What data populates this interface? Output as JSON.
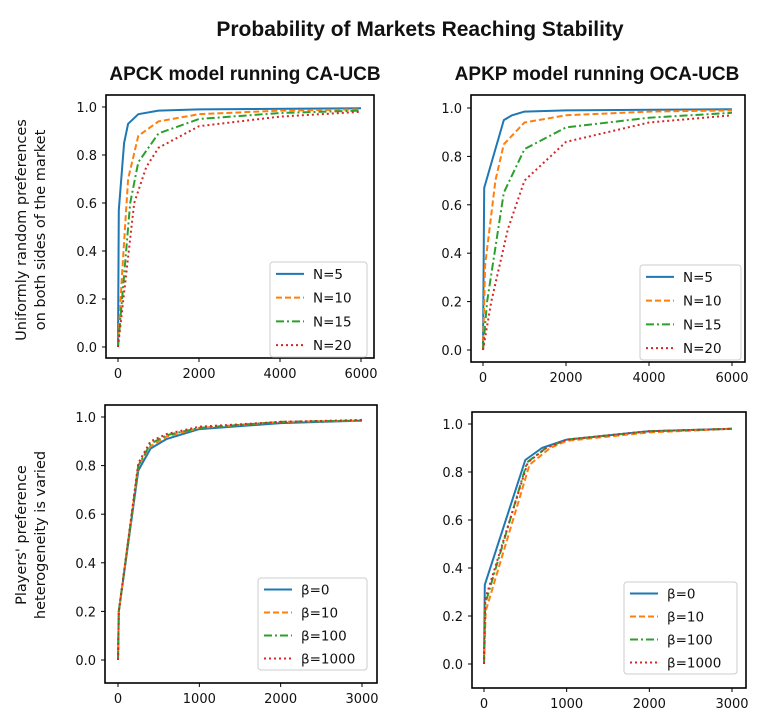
{
  "title": "Probability of Markets Reaching Stability",
  "colors": {
    "s0": "#1f77b4",
    "s1": "#ff7f0e",
    "s2": "#2ca02c",
    "s3": "#d62728"
  },
  "chart_data": [
    {
      "type": "line",
      "title": "APCK model running CA-UCB",
      "ylabel": [
        "Uniformly random preferences",
        "on both sides of the market"
      ],
      "xlim": [
        0,
        6000
      ],
      "ylim": [
        0,
        1
      ],
      "xticks": [
        "0",
        "2000",
        "4000",
        "6000"
      ],
      "yticks": [
        "0.0",
        "0.2",
        "0.4",
        "0.6",
        "0.8",
        "1.0"
      ],
      "legend": "lower-right",
      "grid": false,
      "series": [
        {
          "name": "N=5",
          "style": "solid",
          "x": [
            0,
            20,
            150,
            250,
            500,
            1000,
            2000,
            6000
          ],
          "y": [
            0,
            0.57,
            0.85,
            0.93,
            0.97,
            0.985,
            0.99,
            0.995
          ]
        },
        {
          "name": "N=10",
          "style": "dashed",
          "x": [
            0,
            100,
            250,
            500,
            1000,
            2000,
            4000,
            6000
          ],
          "y": [
            0,
            0.3,
            0.7,
            0.88,
            0.94,
            0.97,
            0.985,
            0.99
          ]
        },
        {
          "name": "N=15",
          "style": "dashdot",
          "x": [
            0,
            150,
            300,
            500,
            1000,
            2000,
            4000,
            6000
          ],
          "y": [
            0,
            0.3,
            0.6,
            0.77,
            0.89,
            0.95,
            0.975,
            0.985
          ]
        },
        {
          "name": "N=20",
          "style": "dotted",
          "x": [
            0,
            200,
            400,
            700,
            1000,
            2000,
            4000,
            6000
          ],
          "y": [
            0,
            0.3,
            0.6,
            0.75,
            0.83,
            0.92,
            0.96,
            0.98
          ]
        }
      ]
    },
    {
      "type": "line",
      "title": "APKP model running OCA-UCB",
      "ylabel": [],
      "xlim": [
        0,
        6000
      ],
      "ylim": [
        0,
        1
      ],
      "xticks": [
        "0",
        "2000",
        "4000",
        "6000"
      ],
      "yticks": [
        "0.0",
        "0.2",
        "0.4",
        "0.6",
        "0.8",
        "1.0"
      ],
      "legend": "lower-right",
      "grid": false,
      "series": [
        {
          "name": "N=5",
          "style": "solid",
          "x": [
            0,
            30,
            500,
            700,
            1000,
            2000,
            6000
          ],
          "y": [
            0,
            0.67,
            0.95,
            0.97,
            0.985,
            0.99,
            0.995
          ]
        },
        {
          "name": "N=10",
          "style": "dashed",
          "x": [
            0,
            50,
            300,
            500,
            1000,
            2000,
            4000,
            6000
          ],
          "y": [
            0,
            0.35,
            0.7,
            0.85,
            0.94,
            0.97,
            0.985,
            0.99
          ]
        },
        {
          "name": "N=15",
          "style": "dashdot",
          "x": [
            0,
            100,
            500,
            1000,
            2000,
            4000,
            6000
          ],
          "y": [
            0,
            0.2,
            0.65,
            0.83,
            0.92,
            0.96,
            0.98
          ]
        },
        {
          "name": "N=20",
          "style": "dotted",
          "x": [
            0,
            200,
            600,
            1000,
            2000,
            4000,
            6000
          ],
          "y": [
            0,
            0.2,
            0.5,
            0.7,
            0.86,
            0.94,
            0.97
          ]
        }
      ]
    },
    {
      "type": "line",
      "title": "",
      "ylabel": [
        "Players' preference",
        "heterogeneity is varied"
      ],
      "xlim": [
        0,
        3000
      ],
      "ylim": [
        0,
        1
      ],
      "xticks": [
        "0",
        "1000",
        "2000",
        "3000"
      ],
      "yticks": [
        "0.0",
        "0.2",
        "0.4",
        "0.6",
        "0.8",
        "1.0"
      ],
      "legend": "lower-right",
      "grid": false,
      "series": [
        {
          "name": "β=0",
          "style": "solid",
          "x": [
            0,
            10,
            250,
            400,
            600,
            1000,
            2000,
            3000
          ],
          "y": [
            0,
            0.2,
            0.78,
            0.87,
            0.91,
            0.95,
            0.975,
            0.985
          ]
        },
        {
          "name": "β=10",
          "style": "dashed",
          "x": [
            0,
            10,
            250,
            400,
            600,
            1000,
            2000,
            3000
          ],
          "y": [
            0,
            0.2,
            0.8,
            0.88,
            0.92,
            0.955,
            0.98,
            0.985
          ]
        },
        {
          "name": "β=100",
          "style": "dashdot",
          "x": [
            0,
            10,
            250,
            400,
            600,
            1000,
            2000,
            3000
          ],
          "y": [
            0,
            0.2,
            0.8,
            0.89,
            0.925,
            0.955,
            0.98,
            0.985
          ]
        },
        {
          "name": "β=1000",
          "style": "dotted",
          "x": [
            0,
            10,
            250,
            400,
            600,
            1000,
            2000,
            3000
          ],
          "y": [
            0,
            0.2,
            0.81,
            0.9,
            0.93,
            0.96,
            0.98,
            0.988
          ]
        }
      ]
    },
    {
      "type": "line",
      "title": "",
      "ylabel": [],
      "xlim": [
        0,
        3000
      ],
      "ylim": [
        0,
        1
      ],
      "xticks": [
        "0",
        "1000",
        "2000",
        "3000"
      ],
      "yticks": [
        "0.0",
        "0.2",
        "0.4",
        "0.6",
        "0.8",
        "1.0"
      ],
      "legend": "lower-right",
      "grid": false,
      "series": [
        {
          "name": "β=0",
          "style": "solid",
          "x": [
            0,
            10,
            500,
            700,
            1000,
            2000,
            3000
          ],
          "y": [
            0,
            0.33,
            0.85,
            0.9,
            0.935,
            0.97,
            0.98
          ]
        },
        {
          "name": "β=10",
          "style": "dashed",
          "x": [
            0,
            20,
            550,
            800,
            1000,
            2000,
            3000
          ],
          "y": [
            0,
            0.22,
            0.83,
            0.9,
            0.93,
            0.965,
            0.98
          ]
        },
        {
          "name": "β=100",
          "style": "dashdot",
          "x": [
            0,
            15,
            520,
            750,
            1000,
            2000,
            3000
          ],
          "y": [
            0,
            0.25,
            0.84,
            0.9,
            0.935,
            0.97,
            0.98
          ]
        },
        {
          "name": "β=1000",
          "style": "dotted",
          "x": [
            0,
            15,
            530,
            750,
            1000,
            2000,
            3000
          ],
          "y": [
            0,
            0.27,
            0.84,
            0.9,
            0.935,
            0.97,
            0.98
          ]
        }
      ]
    }
  ]
}
